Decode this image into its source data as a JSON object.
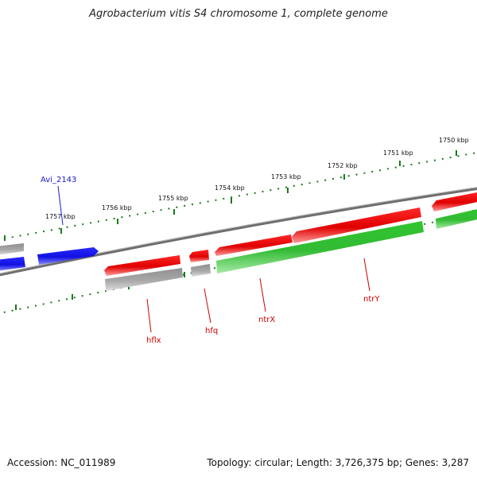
{
  "title": "Agrobacterium vitis S4 chromosome 1, complete genome",
  "footer": {
    "accession": "Accession: NC_011989",
    "summary": "Topology: circular; Length: 3,726,375 bp; Genes: 3,287"
  },
  "colors": {
    "forward_gene": "#e00000",
    "reverse_gene": "#1f1fe0",
    "rna_gene": "#33bb33",
    "pseudo_gene": "#a8a8a8",
    "backbone": "#7a7a7a",
    "ticks": "#1a7a1a",
    "label_red": "#cc0000",
    "label_blue": "#1a1acc"
  },
  "ticks": [
    {
      "label": "1750 kbp"
    },
    {
      "label": "1751 kbp"
    },
    {
      "label": "1752 kbp"
    },
    {
      "label": "1753 kbp"
    },
    {
      "label": "1754 kbp"
    },
    {
      "label": "1755 kbp"
    },
    {
      "label": "1756 kbp"
    },
    {
      "label": "1757 kbp"
    }
  ],
  "genes": [
    {
      "name": "Avi_2143"
    },
    {
      "name": "hflx"
    },
    {
      "name": "hfq"
    },
    {
      "name": "ntrX"
    },
    {
      "name": "ntrY"
    }
  ]
}
